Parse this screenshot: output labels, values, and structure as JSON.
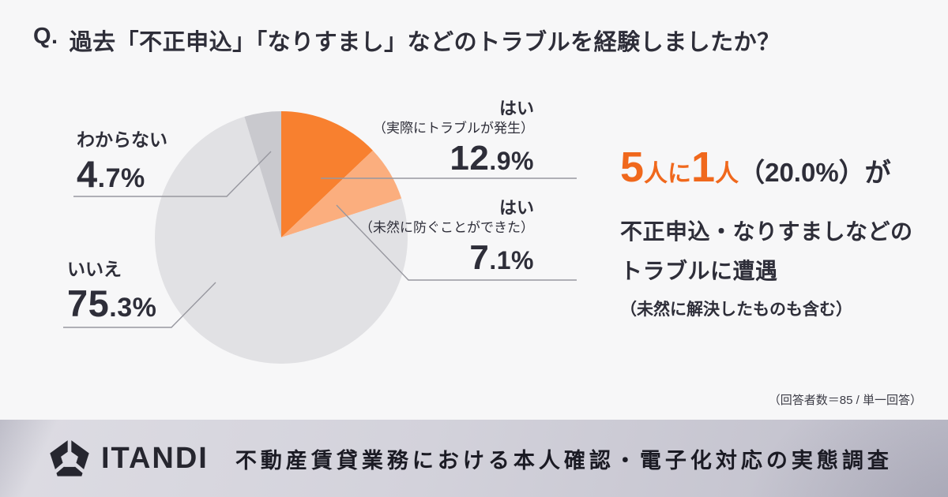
{
  "title": {
    "prefix": "Q.",
    "text": "過去「不正申込」「なりすまし」などのトラブルを経験しましたか？"
  },
  "chart_data": {
    "type": "pie",
    "title": "過去「不正申込」「なりすまし」などのトラブルを経験しましたか？",
    "unit": "%",
    "start_angle_deg": 0,
    "direction": "clockwise",
    "legend": "none",
    "slices": [
      {
        "label": "はい",
        "sublabel": "（実際にトラブルが発生）",
        "value": 12.9,
        "display": "12.9%",
        "color": "#F8802F"
      },
      {
        "label": "はい",
        "sublabel": "（未然に防ぐことができた）",
        "value": 7.1,
        "display": "7.1%",
        "color": "#FBAE7E"
      },
      {
        "label": "いいえ",
        "sublabel": "",
        "value": 75.3,
        "display": "75.3%",
        "color": "#E1E1E4"
      },
      {
        "label": "わからない",
        "sublabel": "",
        "value": 4.7,
        "display": "4.7%",
        "color": "#C9C9CE"
      }
    ]
  },
  "callout": {
    "headline_segments": [
      {
        "text": "5",
        "style": "orange-big"
      },
      {
        "text": "人に",
        "style": "orange-small"
      },
      {
        "text": "1",
        "style": "orange-big"
      },
      {
        "text": "人",
        "style": "orange-small"
      },
      {
        "text": "（20.0%）が",
        "style": "dark"
      }
    ],
    "line2": "不正申込・なりすましなどの",
    "line3": "トラブルに遭遇",
    "line4": "（未然に解決したものも含む）"
  },
  "note": "（回答者数＝85 / 単一回答）",
  "footer": {
    "logo_icon": "itandi-pentagon-logo",
    "brand": "ITANDI",
    "text": "不動産賃貸業務における本人確認・電子化対応の実態調査"
  },
  "colors": {
    "background": "#F7F7F8",
    "dark_text": "#2E2E39",
    "accent_orange": "#F0681C",
    "footer_background": "#D3D2DB"
  }
}
